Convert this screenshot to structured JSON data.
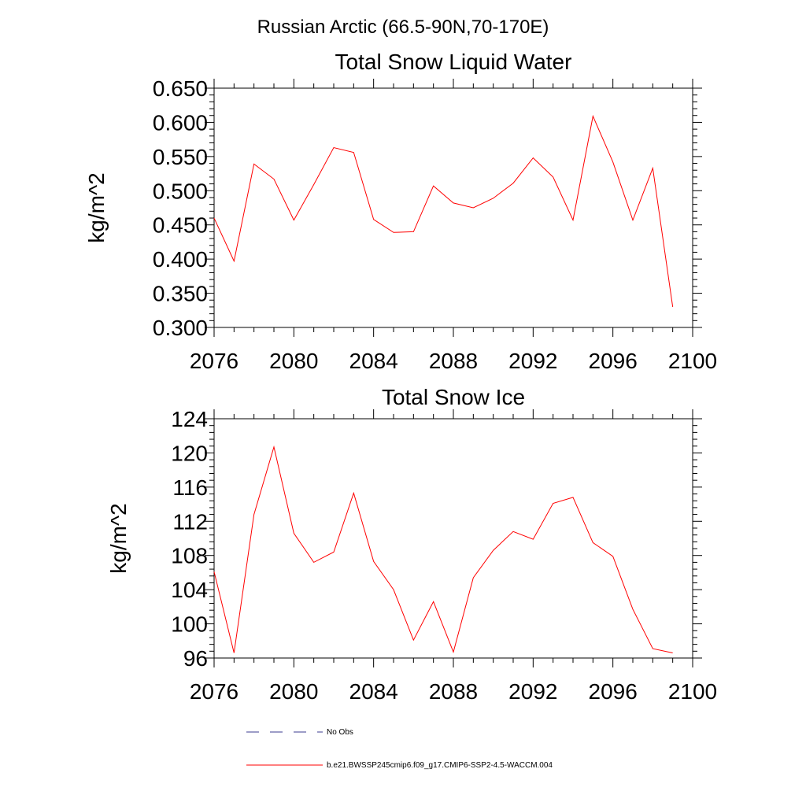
{
  "figure_title": "Russian Arctic (66.5-90N,70-170E)",
  "legend": [
    {
      "label": "No Obs",
      "color": "#3b3b8f",
      "dash": true
    },
    {
      "label": "b.e21.BWSSP245cmip6.f09_g17.CMIP6-SSP2-4.5-WACCM.004",
      "color": "#ff0000",
      "dash": false
    }
  ],
  "chart_data": [
    {
      "type": "line",
      "title": "Total Snow Liquid Water",
      "xlabel": "",
      "ylabel": "kg/m^2",
      "xlim": [
        2076,
        2100
      ],
      "ylim": [
        0.3,
        0.65
      ],
      "xticks": [
        2076,
        2080,
        2084,
        2088,
        2092,
        2096,
        2100
      ],
      "yticks": [
        0.3,
        0.35,
        0.4,
        0.45,
        0.5,
        0.55,
        0.6,
        0.65
      ],
      "ytick_labels": [
        "0.300",
        "0.350",
        "0.400",
        "0.450",
        "0.500",
        "0.550",
        "0.600",
        "0.650"
      ],
      "x": [
        2076,
        2077,
        2078,
        2079,
        2080,
        2081,
        2082,
        2083,
        2084,
        2085,
        2086,
        2087,
        2088,
        2089,
        2090,
        2091,
        2092,
        2093,
        2094,
        2095,
        2096,
        2097,
        2098,
        2099
      ],
      "series": [
        {
          "name": "b.e21.BWSSP245cmip6.f09_g17.CMIP6-SSP2-4.5-WACCM.004",
          "color": "#ff0000",
          "values": [
            0.46,
            0.397,
            0.539,
            0.517,
            0.457,
            0.509,
            0.563,
            0.556,
            0.458,
            0.439,
            0.44,
            0.507,
            0.482,
            0.475,
            0.489,
            0.511,
            0.548,
            0.52,
            0.457,
            0.609,
            0.542,
            0.457,
            0.533,
            0.33
          ]
        }
      ]
    },
    {
      "type": "line",
      "title": "Total Snow Ice",
      "xlabel": "",
      "ylabel": "kg/m^2",
      "xlim": [
        2076,
        2100
      ],
      "ylim": [
        96,
        124
      ],
      "xticks": [
        2076,
        2080,
        2084,
        2088,
        2092,
        2096,
        2100
      ],
      "yticks": [
        96,
        100,
        104,
        108,
        112,
        116,
        120,
        124
      ],
      "ytick_labels": [
        "96",
        "100",
        "104",
        "108",
        "112",
        "116",
        "120",
        "124"
      ],
      "x": [
        2076,
        2077,
        2078,
        2079,
        2080,
        2081,
        2082,
        2083,
        2084,
        2085,
        2086,
        2087,
        2088,
        2089,
        2090,
        2091,
        2092,
        2093,
        2094,
        2095,
        2096,
        2097,
        2098,
        2099
      ],
      "series": [
        {
          "name": "b.e21.BWSSP245cmip6.f09_g17.CMIP6-SSP2-4.5-WACCM.004",
          "color": "#ff0000",
          "values": [
            106.1,
            96.6,
            112.8,
            120.7,
            110.6,
            107.2,
            108.4,
            115.3,
            107.3,
            104.0,
            98.1,
            102.6,
            96.7,
            105.4,
            108.6,
            110.8,
            109.9,
            114.1,
            114.8,
            109.5,
            107.9,
            101.7,
            97.1,
            96.6
          ]
        }
      ]
    }
  ]
}
